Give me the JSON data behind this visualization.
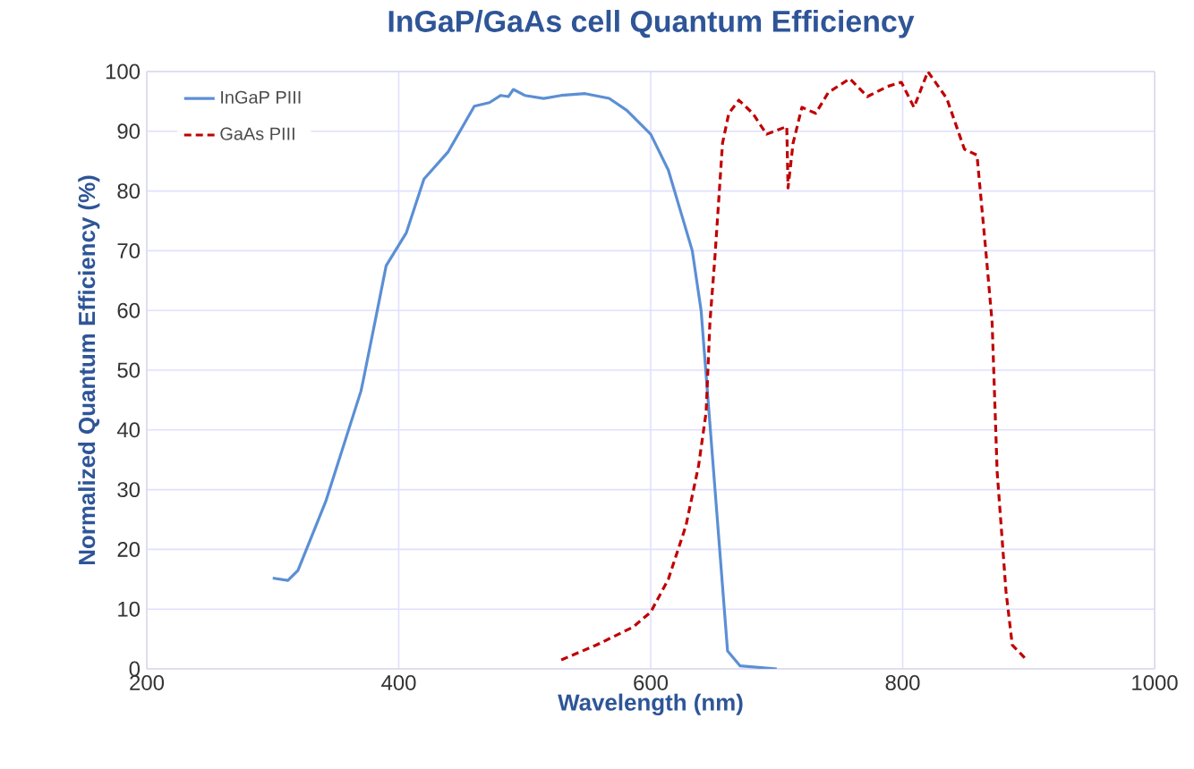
{
  "chart_data": {
    "type": "line",
    "title": "InGaP/GaAs cell Quantum Efficiency",
    "xlabel": "Wavelength (nm)",
    "ylabel": "Normalized Quantum Efficiency (%)",
    "xlim": [
      200,
      1000
    ],
    "xticks": [
      200,
      400,
      600,
      800,
      1000
    ],
    "ylim": [
      0,
      100
    ],
    "yticks": [
      0,
      10,
      20,
      30,
      40,
      50,
      60,
      70,
      80,
      90,
      100
    ],
    "grid": true,
    "legend": "top left",
    "marker": "none",
    "series": [
      {
        "name": "InGaP PIII",
        "color": "#5b8fd4",
        "line_style": "solid",
        "x": [
          300,
          312,
          320,
          342,
          370,
          372,
          382,
          390,
          406,
          420,
          439,
          460,
          472,
          481,
          487,
          491,
          500,
          515,
          529,
          548,
          567,
          581,
          600,
          614,
          633,
          640,
          647,
          661,
          671,
          700
        ],
        "values": [
          15.2,
          14.8,
          16.5,
          28,
          46.5,
          48.5,
          59,
          67.5,
          73,
          82,
          86.5,
          94.2,
          94.8,
          96,
          95.8,
          97,
          96,
          95.5,
          96,
          96.3,
          95.5,
          93.5,
          89.5,
          83.5,
          70,
          60,
          41,
          3,
          0.5,
          0
        ]
      },
      {
        "name": "GaAs PIII",
        "color": "#c00000",
        "line_style": "dashed",
        "x": [
          529,
          557,
          586,
          600,
          614,
          628,
          638,
          644,
          647,
          651,
          657,
          662,
          670,
          681,
          692,
          708,
          709,
          713,
          720,
          731,
          741,
          758,
          772,
          788,
          799,
          809,
          820,
          835,
          849,
          859,
          866,
          871,
          875,
          882,
          887,
          897
        ],
        "values": [
          1.5,
          4,
          7,
          9.5,
          15,
          24,
          34,
          43,
          58,
          69,
          88,
          93,
          95.2,
          93,
          89.5,
          90.8,
          80.5,
          88,
          94,
          93,
          96.5,
          98.8,
          95.8,
          97.5,
          98.2,
          94,
          100,
          95.5,
          87,
          86,
          70,
          58,
          33,
          13,
          4,
          1.8
        ]
      }
    ]
  }
}
